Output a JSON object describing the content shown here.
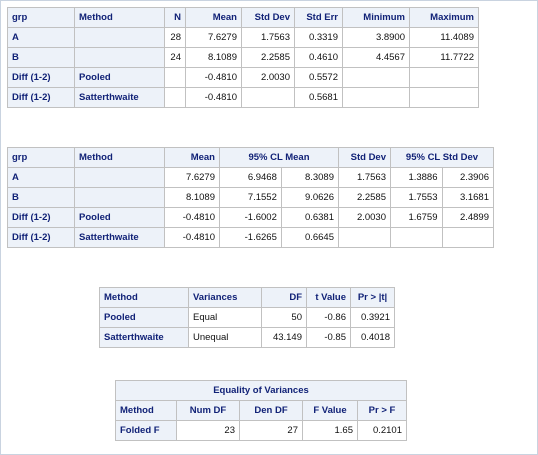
{
  "table1": {
    "headers": [
      "grp",
      "Method",
      "N",
      "Mean",
      "Std Dev",
      "Std Err",
      "Minimum",
      "Maximum"
    ],
    "rows": [
      [
        "A",
        "",
        "28",
        "7.6279",
        "1.7563",
        "0.3319",
        "3.8900",
        "11.4089"
      ],
      [
        "B",
        "",
        "24",
        "8.1089",
        "2.2585",
        "0.4610",
        "4.4567",
        "11.7722"
      ],
      [
        "Diff (1-2)",
        "Pooled",
        "",
        "-0.4810",
        "2.0030",
        "0.5572",
        "",
        ""
      ],
      [
        "Diff (1-2)",
        "Satterthwaite",
        "",
        "-0.4810",
        "",
        "0.5681",
        "",
        ""
      ]
    ]
  },
  "table2": {
    "headers": [
      "grp",
      "Method",
      "Mean",
      "95% CL Mean",
      "Std Dev",
      "95% CL Std Dev"
    ],
    "rows": [
      [
        "A",
        "",
        "7.6279",
        "6.9468",
        "8.3089",
        "1.7563",
        "1.3886",
        "2.3906"
      ],
      [
        "B",
        "",
        "8.1089",
        "7.1552",
        "9.0626",
        "2.2585",
        "1.7553",
        "3.1681"
      ],
      [
        "Diff (1-2)",
        "Pooled",
        "-0.4810",
        "-1.6002",
        "0.6381",
        "2.0030",
        "1.6759",
        "2.4899"
      ],
      [
        "Diff (1-2)",
        "Satterthwaite",
        "-0.4810",
        "-1.6265",
        "0.6645",
        "",
        "",
        ""
      ]
    ]
  },
  "table3": {
    "headers": [
      "Method",
      "Variances",
      "DF",
      "t Value",
      "Pr > |t|"
    ],
    "rows": [
      [
        "Pooled",
        "Equal",
        "50",
        "-0.86",
        "0.3921"
      ],
      [
        "Satterthwaite",
        "Unequal",
        "43.149",
        "-0.85",
        "0.4018"
      ]
    ]
  },
  "table4": {
    "title": "Equality of Variances",
    "headers": [
      "Method",
      "Num DF",
      "Den DF",
      "F Value",
      "Pr > F"
    ],
    "rows": [
      [
        "Folded F",
        "23",
        "27",
        "1.65",
        "0.2101"
      ]
    ]
  }
}
